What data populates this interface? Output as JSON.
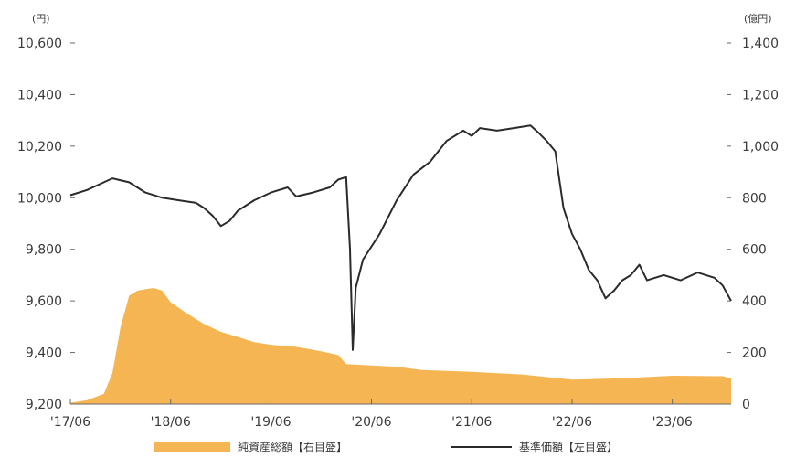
{
  "chart_data": {
    "type": "line",
    "left_unit": "(円)",
    "right_unit": "(億円)",
    "y_left": {
      "min": 9200,
      "max": 10600,
      "ticks": [
        9200,
        9400,
        9600,
        9800,
        10000,
        10200,
        10400,
        10600
      ],
      "tick_labels": [
        "9,200",
        "9,400",
        "9,600",
        "9,800",
        "10,000",
        "10,200",
        "10,400",
        "10,600"
      ]
    },
    "y_right": {
      "min": 0,
      "max": 1400,
      "ticks": [
        0,
        200,
        400,
        600,
        800,
        1000,
        1200,
        1400
      ],
      "tick_labels": [
        "0",
        "200",
        "400",
        "600",
        "800",
        "1,000",
        "1,200",
        "1,400"
      ]
    },
    "x": {
      "start": "2017-06",
      "end": "2024-01",
      "ticks": [
        "2017-06",
        "2018-06",
        "2019-06",
        "2020-06",
        "2021-06",
        "2022-06",
        "2023-06"
      ],
      "tick_labels": [
        "'17/06",
        "'18/06",
        "'19/06",
        "'20/06",
        "'21/06",
        "'22/06",
        "'23/06"
      ]
    },
    "series": [
      {
        "name": "純資産総額【右目盛】",
        "kind": "area",
        "axis": "right",
        "color": "#f5b552",
        "points": [
          [
            "2017-06",
            5
          ],
          [
            "2017-08",
            15
          ],
          [
            "2017-10",
            40
          ],
          [
            "2017-11",
            120
          ],
          [
            "2017-12",
            300
          ],
          [
            "2018-01",
            420
          ],
          [
            "2018-02",
            440
          ],
          [
            "2018-03",
            445
          ],
          [
            "2018-04",
            450
          ],
          [
            "2018-05",
            440
          ],
          [
            "2018-06",
            395
          ],
          [
            "2018-08",
            350
          ],
          [
            "2018-10",
            310
          ],
          [
            "2018-12",
            280
          ],
          [
            "2019-02",
            260
          ],
          [
            "2019-04",
            240
          ],
          [
            "2019-06",
            230
          ],
          [
            "2019-09",
            222
          ],
          [
            "2019-12",
            205
          ],
          [
            "2020-02",
            190
          ],
          [
            "2020-03",
            155
          ],
          [
            "2020-06",
            150
          ],
          [
            "2020-09",
            145
          ],
          [
            "2020-12",
            132
          ],
          [
            "2021-06",
            125
          ],
          [
            "2021-12",
            115
          ],
          [
            "2022-06",
            95
          ],
          [
            "2022-12",
            100
          ],
          [
            "2023-06",
            110
          ],
          [
            "2023-12",
            108
          ],
          [
            "2024-01",
            100
          ]
        ]
      },
      {
        "name": "基準価額【左目盛】",
        "kind": "line",
        "axis": "left",
        "color": "#2b2b2b",
        "points": [
          [
            "2017-06",
            10010
          ],
          [
            "2017-08",
            10030
          ],
          [
            "2017-10",
            10060
          ],
          [
            "2017-11",
            10075
          ],
          [
            "2018-01",
            10060
          ],
          [
            "2018-03",
            10020
          ],
          [
            "2018-05",
            10000
          ],
          [
            "2018-07",
            9990
          ],
          [
            "2018-09",
            9980
          ],
          [
            "2018-10",
            9960
          ],
          [
            "2018-11",
            9930
          ],
          [
            "2018-12",
            9890
          ],
          [
            "2019-01",
            9910
          ],
          [
            "2019-02",
            9950
          ],
          [
            "2019-04",
            9990
          ],
          [
            "2019-06",
            10020
          ],
          [
            "2019-08",
            10040
          ],
          [
            "2019-09",
            10005
          ],
          [
            "2019-11",
            10020
          ],
          [
            "2020-01",
            10040
          ],
          [
            "2020-02",
            10070
          ],
          [
            "2020-03",
            10080
          ],
          [
            "2020-03-15",
            9800
          ],
          [
            "2020-03-25",
            9410
          ],
          [
            "2020-04-05",
            9650
          ],
          [
            "2020-05",
            9760
          ],
          [
            "2020-07",
            9860
          ],
          [
            "2020-09",
            9990
          ],
          [
            "2020-11",
            10090
          ],
          [
            "2021-01",
            10140
          ],
          [
            "2021-03",
            10220
          ],
          [
            "2021-05",
            10260
          ],
          [
            "2021-06",
            10240
          ],
          [
            "2021-07",
            10270
          ],
          [
            "2021-09",
            10260
          ],
          [
            "2021-11",
            10270
          ],
          [
            "2022-01",
            10280
          ],
          [
            "2022-02",
            10250
          ],
          [
            "2022-03",
            10220
          ],
          [
            "2022-04",
            10180
          ],
          [
            "2022-05",
            9960
          ],
          [
            "2022-06",
            9860
          ],
          [
            "2022-07",
            9800
          ],
          [
            "2022-08",
            9720
          ],
          [
            "2022-09",
            9680
          ],
          [
            "2022-10",
            9610
          ],
          [
            "2022-11",
            9640
          ],
          [
            "2022-12",
            9680
          ],
          [
            "2023-01",
            9700
          ],
          [
            "2023-02",
            9740
          ],
          [
            "2023-03",
            9680
          ],
          [
            "2023-05",
            9700
          ],
          [
            "2023-07",
            9680
          ],
          [
            "2023-09",
            9710
          ],
          [
            "2023-11",
            9690
          ],
          [
            "2023-12",
            9660
          ],
          [
            "2024-01",
            9600
          ]
        ]
      }
    ],
    "grid": false,
    "legend_position": "bottom"
  }
}
